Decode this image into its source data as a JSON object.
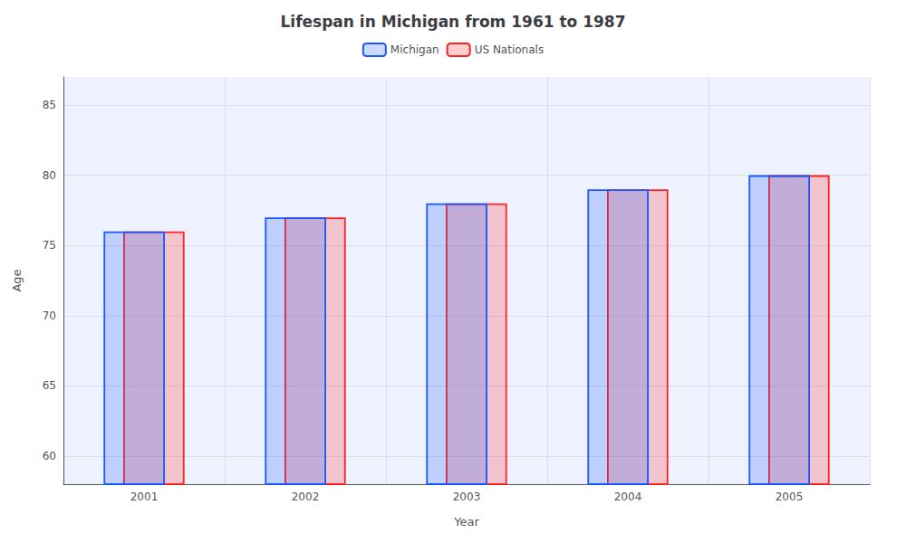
{
  "chart_data": {
    "type": "bar",
    "title": "Lifespan in Michigan from 1961 to 1987",
    "xlabel": "Year",
    "ylabel": "Age",
    "categories": [
      "2001",
      "2002",
      "2003",
      "2004",
      "2005"
    ],
    "series": [
      {
        "name": "Michigan",
        "color": "#1a56ff",
        "values": [
          76,
          77,
          78,
          79,
          80
        ]
      },
      {
        "name": "US Nationals",
        "color": "#ff2020",
        "values": [
          76,
          77,
          78,
          79,
          80
        ]
      }
    ],
    "ylim": [
      58,
      87
    ],
    "yticks": [
      60,
      65,
      70,
      75,
      80,
      85
    ],
    "grid": true,
    "legend": "top"
  }
}
